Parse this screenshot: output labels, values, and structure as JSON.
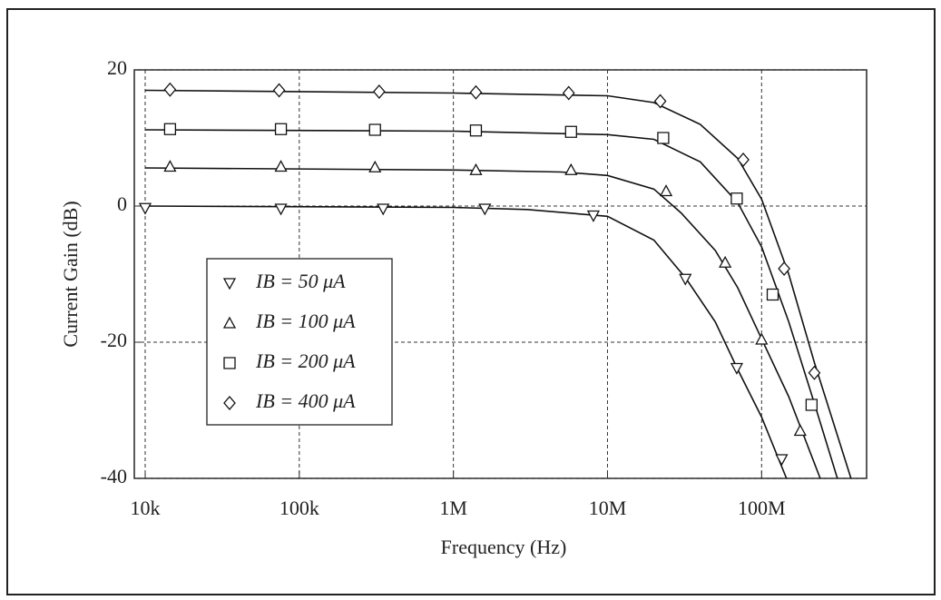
{
  "chart_data": {
    "type": "scatter",
    "log_x": true,
    "grid": true,
    "legend": "lower left",
    "xlabel": "Frequency (Hz)",
    "ylabel": "Current Gain (dB)",
    "xlim": [
      8500,
      480000000
    ],
    "ylim": [
      -40,
      20
    ],
    "xticks": [
      {
        "value": 10000,
        "label": "10k"
      },
      {
        "value": 100000,
        "label": "100k"
      },
      {
        "value": 1000000,
        "label": "1M"
      },
      {
        "value": 10000000,
        "label": "10M"
      },
      {
        "value": 100000000,
        "label": "100M"
      }
    ],
    "yticks": [
      20,
      0,
      -20,
      -40
    ],
    "series": [
      {
        "name": "IB = 50 μA",
        "marker": "triangle-down",
        "color": "#111111",
        "x": [
          10000,
          76000,
          350000,
          1600000,
          8100000,
          32000000,
          69000000,
          135000000
        ],
        "values": [
          -0.3,
          -0.4,
          -0.4,
          -0.4,
          -1.4,
          -10.7,
          -23.8,
          -37.2
        ],
        "curve": {
          "x": [
            10000,
            1000000,
            3000000,
            10000000,
            20000000,
            32000000,
            50000000,
            70000000,
            100000000,
            145000000
          ],
          "values": [
            0,
            -0.2,
            -0.5,
            -1.5,
            -5,
            -10.5,
            -17,
            -24,
            -31,
            -40
          ]
        }
      },
      {
        "name": "IB = 100 μA",
        "marker": "triangle-up",
        "color": "#111111",
        "x": [
          14500,
          76000,
          310000,
          1400000,
          5800000,
          24000000,
          58000000,
          100000000,
          178000000
        ],
        "values": [
          5.8,
          5.8,
          5.7,
          5.3,
          5.3,
          2.2,
          -8.3,
          -19.6,
          -33.0
        ],
        "curve": {
          "x": [
            10000,
            1000000,
            5000000,
            10000000,
            20000000,
            30000000,
            50000000,
            70000000,
            100000000,
            150000000,
            240000000
          ],
          "values": [
            5.6,
            5.3,
            5,
            4.5,
            2.5,
            -1,
            -6.5,
            -12,
            -19.5,
            -28,
            -40
          ]
        }
      },
      {
        "name": "IB = 200 μA",
        "marker": "square",
        "color": "#111111",
        "x": [
          14500,
          76000,
          310000,
          1400000,
          5800000,
          23000000,
          69000000,
          118000000,
          211000000
        ],
        "values": [
          11.3,
          11.3,
          11.2,
          11.1,
          10.9,
          10.0,
          1.1,
          -13.0,
          -29.2
        ],
        "curve": {
          "x": [
            10000,
            1000000,
            10000000,
            20000000,
            40000000,
            70000000,
            100000000,
            150000000,
            220000000,
            310000000
          ],
          "values": [
            11.2,
            11,
            10.5,
            9.8,
            6.5,
            0.5,
            -6,
            -17,
            -29,
            -40
          ]
        }
      },
      {
        "name": "IB = 400 μA",
        "marker": "diamond",
        "color": "#111111",
        "x": [
          14500,
          74000,
          330000,
          1400000,
          5600000,
          22000000,
          76000000,
          140000000,
          220000000
        ],
        "values": [
          17.1,
          17.0,
          16.8,
          16.7,
          16.6,
          15.4,
          6.8,
          -9.2,
          -24.5
        ],
        "curve": {
          "x": [
            10000,
            1000000,
            10000000,
            20000000,
            40000000,
            70000000,
            100000000,
            150000000,
            220000000,
            380000000
          ],
          "values": [
            17,
            16.6,
            16.2,
            15.2,
            12,
            7,
            1,
            -10,
            -23,
            -40
          ]
        }
      }
    ]
  }
}
